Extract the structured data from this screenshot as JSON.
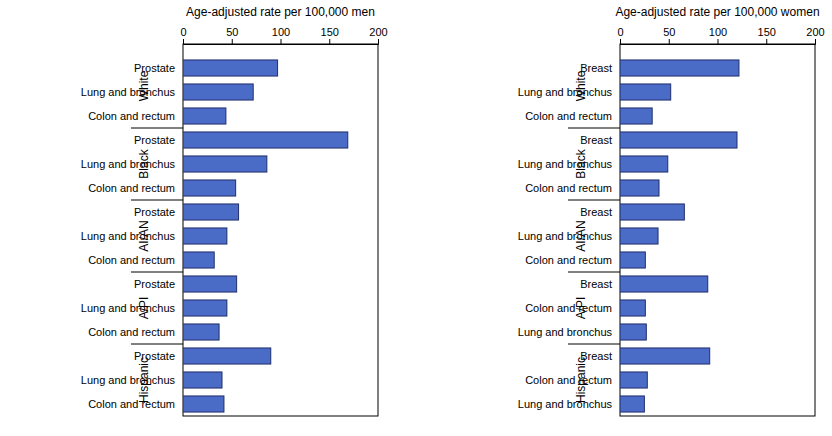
{
  "chart_data": [
    {
      "type": "bar",
      "orientation": "horizontal",
      "xlabel": "Age-adjusted rate per 100,000 men",
      "groups": [
        "White",
        "Black",
        "AI/AN",
        "A/PI",
        "Hispanic"
      ],
      "categories": [
        "Prostate",
        "Lung and bronchus",
        "Colon and rectum",
        "Prostate",
        "Lung and bronchus",
        "Colon and rectum",
        "Prostate",
        "Lung and bronchus",
        "Colon and rectum",
        "Prostate",
        "Lung and bronchus",
        "Colon and rectum",
        "Prostate",
        "Lung and bronchus",
        "Colon and rectum"
      ],
      "values": [
        97,
        72,
        44,
        169,
        86,
        54,
        57,
        45,
        32,
        55,
        45,
        37,
        90,
        40,
        42
      ],
      "color": "#4a6cc6",
      "xlim": [
        0,
        200
      ],
      "xticks": [
        0,
        50,
        100,
        150,
        200
      ]
    },
    {
      "type": "bar",
      "orientation": "horizontal",
      "xlabel": "Age-adjusted rate per 100,000 women",
      "groups": [
        "White",
        "Black",
        "AI/AN",
        "A/PI",
        "Hispanic"
      ],
      "categories": [
        "Breast",
        "Lung and bronchus",
        "Colon and rectum",
        "Breast",
        "Lung and bronchus",
        "Colon and rectum",
        "Breast",
        "Lung and bronchus",
        "Colon and rectum",
        "Breast",
        "Colon and rectum",
        "Lung and bronchus",
        "Breast",
        "Colon and rectum",
        "Lung and bronchus"
      ],
      "values": [
        122,
        52,
        33,
        120,
        49,
        40,
        66,
        39,
        26,
        90,
        26,
        27,
        92,
        28,
        25
      ],
      "color": "#4a6cc6",
      "xlim": [
        0,
        200
      ],
      "xticks": [
        0,
        50,
        100,
        150,
        200
      ]
    }
  ]
}
